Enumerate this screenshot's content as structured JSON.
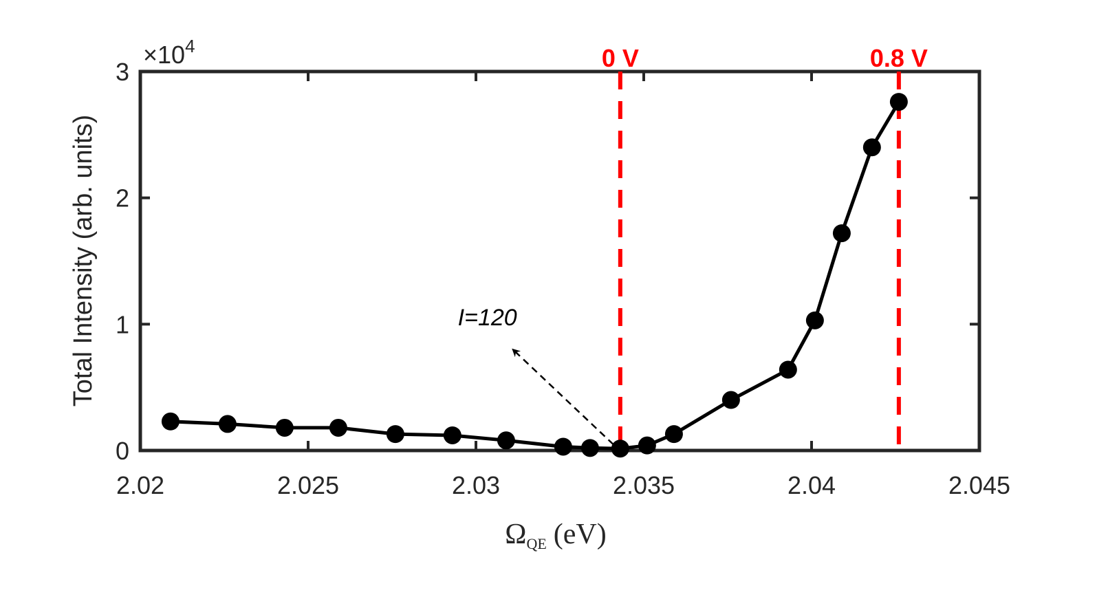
{
  "chart_data": {
    "type": "line",
    "title": "",
    "xlabel": "Ω_QE (eV)",
    "xlabel_main": "Ω",
    "xlabel_sub": "QE",
    "xlabel_unit": "(eV)",
    "ylabel": "Total Intensity (arb. units)",
    "y_multiplier": "×10^4",
    "y_multiplier_base": "×10",
    "y_multiplier_exp": "4",
    "xlim": [
      2.02,
      2.045
    ],
    "ylim": [
      0,
      30000
    ],
    "xticks": [
      2.02,
      2.025,
      2.03,
      2.035,
      2.04,
      2.045
    ],
    "xtick_labels": [
      "2.02",
      "2.025",
      "2.03",
      "2.035",
      "2.04",
      "2.045"
    ],
    "yticks": [
      0,
      10000,
      20000,
      30000
    ],
    "ytick_labels": [
      "0",
      "1",
      "2",
      "3"
    ],
    "grid": false,
    "series": [
      {
        "name": "Total Intensity",
        "color": "#000000",
        "marker": "circle",
        "x": [
          2.0209,
          2.0226,
          2.0243,
          2.0259,
          2.0276,
          2.0293,
          2.0309,
          2.0326,
          2.0334,
          2.0343,
          2.0351,
          2.0359,
          2.0376,
          2.0393,
          2.0401,
          2.0409,
          2.0418,
          2.0426
        ],
        "y": [
          2300,
          2100,
          1800,
          1800,
          1300,
          1200,
          800,
          300,
          200,
          150,
          400,
          1300,
          4000,
          6400,
          10300,
          17200,
          24000,
          27600
        ]
      }
    ],
    "vertical_lines": [
      {
        "x": 2.0343,
        "label": "0 V",
        "color": "#ff0000",
        "style": "dashed"
      },
      {
        "x": 2.0426,
        "label": "0.8 V",
        "color": "#ff0000",
        "style": "dashed"
      }
    ],
    "annotations": [
      {
        "text": "I=120",
        "arrow_from": [
          2.0343,
          150
        ],
        "arrow_to": [
          2.0311,
          8000
        ],
        "style": "dashed-arrow"
      }
    ]
  }
}
